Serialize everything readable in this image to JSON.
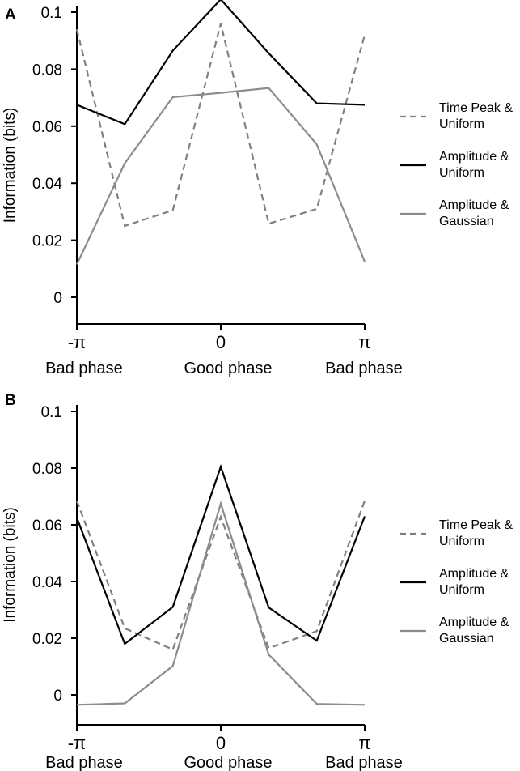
{
  "chart_data": [
    {
      "panel": "A",
      "type": "line",
      "ylabel": "Information (bits)",
      "ylim": [
        0,
        0.1
      ],
      "yticks": [
        "0",
        "0.02",
        "0.04",
        "0.06",
        "0.08",
        "0.1"
      ],
      "xticks": [
        "-π",
        "0",
        "π"
      ],
      "phase_labels": [
        "Bad phase",
        "Good phase",
        "Bad phase"
      ],
      "x": [
        -3.1416,
        -2.0944,
        -1.0472,
        0,
        1.0472,
        2.0944,
        3.1416
      ],
      "series": [
        {
          "name": "Time Peak & Uniform",
          "legend_lines": [
            "Time Peak &",
            "Uniform"
          ],
          "style": "dashed",
          "color": "#808080",
          "values": [
            0.094,
            0.025,
            0.0305,
            0.096,
            0.0258,
            0.031,
            0.092
          ]
        },
        {
          "name": "Amplitude & Uniform",
          "legend_lines": [
            "Amplitude &",
            "Uniform"
          ],
          "style": "solid",
          "color": "#000000",
          "values": [
            0.0675,
            0.0607,
            0.0865,
            0.1045,
            0.0856,
            0.068,
            0.0675
          ]
        },
        {
          "name": "Amplitude & Gaussian",
          "legend_lines": [
            "Amplitude &",
            "Gaussian"
          ],
          "style": "solid",
          "color": "#8c8c8c",
          "values": [
            0.0115,
            0.047,
            0.0702,
            0.0717,
            0.0734,
            0.0536,
            0.0125
          ]
        }
      ]
    },
    {
      "panel": "B",
      "type": "line",
      "ylabel": "Information (bits)",
      "ylim": [
        -0.005,
        0.1
      ],
      "yticks": [
        "0",
        "0.02",
        "0.04",
        "0.06",
        "0.08",
        "0.1"
      ],
      "xticks": [
        "-π",
        "0",
        "π"
      ],
      "phase_labels": [
        "Bad phase",
        "Good phase",
        "Bad phase"
      ],
      "x": [
        -3.1416,
        -2.0944,
        -1.0472,
        0,
        1.0472,
        2.0944,
        3.1416
      ],
      "series": [
        {
          "name": "Time Peak & Uniform",
          "legend_lines": [
            "Time Peak &",
            "Uniform"
          ],
          "style": "dashed",
          "color": "#808080",
          "values": [
            0.0685,
            0.0235,
            0.016,
            0.0628,
            0.0165,
            0.0225,
            0.0685
          ]
        },
        {
          "name": "Amplitude & Uniform",
          "legend_lines": [
            "Amplitude &",
            "Uniform"
          ],
          "style": "solid",
          "color": "#000000",
          "values": [
            0.0625,
            0.018,
            0.031,
            0.0805,
            0.0308,
            0.0191,
            0.063
          ]
        },
        {
          "name": "Amplitude & Gaussian",
          "legend_lines": [
            "Amplitude &",
            "Gaussian"
          ],
          "style": "solid",
          "color": "#8c8c8c",
          "values": [
            -0.0035,
            -0.003,
            0.0102,
            0.0675,
            0.0142,
            -0.0032,
            -0.0035
          ]
        }
      ]
    }
  ]
}
